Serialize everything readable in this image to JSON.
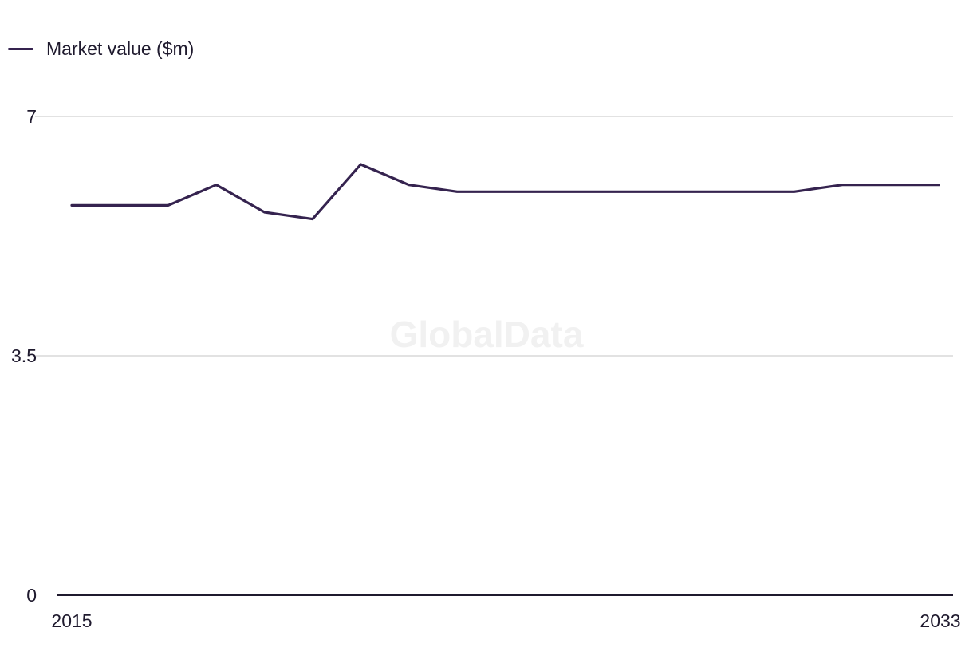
{
  "legend": {
    "label": "Market value ($m)"
  },
  "watermark": "GlobalData",
  "colors": {
    "series": "#35234f",
    "grid": "#d9d9d9",
    "axis": "#1f1a2e",
    "text": "#1f1a2e"
  },
  "chart_data": {
    "type": "line",
    "title": "",
    "xlabel": "",
    "ylabel": "",
    "x": [
      2015,
      2016,
      2017,
      2018,
      2019,
      2020,
      2021,
      2022,
      2023,
      2024,
      2025,
      2026,
      2027,
      2028,
      2029,
      2030,
      2031,
      2032,
      2033
    ],
    "x_tick_labels": [
      "2015",
      "2033"
    ],
    "y_ticks": [
      0,
      3.5,
      7
    ],
    "y_tick_labels": [
      "0",
      "3.5",
      "7"
    ],
    "ylim": [
      0,
      7
    ],
    "grid": true,
    "legend_position": "top-left",
    "series": [
      {
        "name": "Market value ($m)",
        "values": [
          5.7,
          5.7,
          5.7,
          6.0,
          5.6,
          5.5,
          6.3,
          6.0,
          5.9,
          5.9,
          5.9,
          5.9,
          5.9,
          5.9,
          5.9,
          5.9,
          6.0,
          6.0,
          6.0
        ]
      }
    ]
  }
}
